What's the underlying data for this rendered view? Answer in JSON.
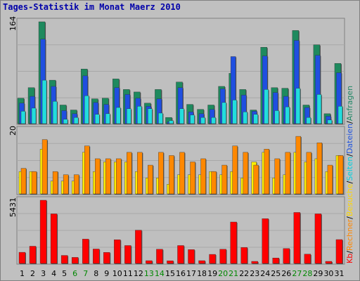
{
  "title": "Tages-Statistik im Monat Maerz 2010",
  "legend": [
    {
      "label": "Kb",
      "color": "#ff0000"
    },
    {
      "label": "/",
      "color": "#000000"
    },
    {
      "label": "Rechner",
      "color": "#ff8800"
    },
    {
      "label": "/",
      "color": "#000000"
    },
    {
      "label": "Besuche",
      "color": "#ffd700"
    },
    {
      "label": "/",
      "color": "#000000"
    },
    {
      "label": "Seiten",
      "color": "#00d0e0"
    },
    {
      "label": "/",
      "color": "#000000"
    },
    {
      "label": "Dateien",
      "color": "#2255dd"
    },
    {
      "label": "/",
      "color": "#000000"
    },
    {
      "label": "Anfragen",
      "color": "#228866"
    }
  ],
  "chart_data": [
    {
      "type": "bar",
      "name": "anfragen-dateien-seiten",
      "ymax_label": "164",
      "ymax": 164,
      "categories": [
        "1",
        "2",
        "3",
        "4",
        "5",
        "6",
        "7",
        "8",
        "9",
        "10",
        "11",
        "12",
        "13",
        "14",
        "15",
        "16",
        "17",
        "18",
        "19",
        "20",
        "21",
        "22",
        "23",
        "24",
        "25",
        "26",
        "27",
        "28",
        "29",
        "30",
        "31"
      ],
      "weekend_days": [
        6,
        7,
        13,
        14,
        20,
        21,
        27,
        28
      ],
      "colors": {
        "anfragen": "#1e8a5e",
        "dateien": "#1f4fe0",
        "seiten": "#22dddd",
        "weekend_label": "#008800"
      },
      "series": [
        {
          "name": "Anfragen",
          "values": [
            41,
            58,
            164,
            70,
            30,
            22,
            88,
            40,
            41,
            72,
            55,
            51,
            33,
            55,
            10,
            67,
            31,
            23,
            30,
            60,
            81,
            55,
            22,
            123,
            58,
            57,
            150,
            30,
            127,
            16,
            97
          ]
        },
        {
          "name": "Dateien",
          "values": [
            33,
            44,
            136,
            60,
            21,
            16,
            77,
            34,
            31,
            58,
            47,
            41,
            28,
            40,
            3,
            58,
            19,
            16,
            23,
            56,
            108,
            46,
            20,
            109,
            50,
            44,
            134,
            26,
            110,
            12,
            82
          ]
        },
        {
          "name": "Seiten",
          "values": [
            20,
            25,
            70,
            36,
            7,
            10,
            45,
            15,
            16,
            26,
            24,
            28,
            24,
            17,
            5,
            24,
            14,
            10,
            10,
            34,
            38,
            19,
            15,
            55,
            21,
            27,
            57,
            10,
            47,
            6,
            28
          ]
        }
      ]
    },
    {
      "type": "bar",
      "name": "besuche-rechner",
      "ymax_label": "20",
      "ymax": 20,
      "colors": {
        "besuche": "#ffee00",
        "rechner": "#ff8800"
      },
      "series": [
        {
          "name": "Besuche",
          "values": [
            7,
            7,
            14,
            4,
            4,
            4,
            13,
            7,
            10,
            10,
            10,
            7,
            5,
            5,
            3,
            6,
            6,
            6,
            7,
            6,
            7,
            5,
            10,
            13,
            5,
            6,
            13,
            10,
            11,
            7,
            12
          ]
        },
        {
          "name": "Rechner",
          "values": [
            8,
            7,
            17,
            7,
            6,
            6,
            15,
            11,
            11,
            11,
            13,
            13,
            9,
            13,
            12,
            13,
            10,
            11,
            7,
            9,
            15,
            13,
            9,
            14,
            11,
            13,
            18,
            13,
            16,
            9,
            12
          ]
        }
      ]
    },
    {
      "type": "bar",
      "name": "kb",
      "ymax_label": "5431",
      "ymax": 5431,
      "colors": {
        "kb": "#ff0000"
      },
      "series": [
        {
          "name": "Kb",
          "values": [
            960,
            1480,
            5431,
            4260,
            690,
            520,
            2090,
            1240,
            950,
            2040,
            1540,
            2860,
            240,
            1220,
            230,
            1540,
            1190,
            240,
            780,
            1220,
            3560,
            1370,
            180,
            3850,
            470,
            1280,
            4380,
            800,
            4260,
            180,
            2050
          ]
        }
      ]
    }
  ]
}
